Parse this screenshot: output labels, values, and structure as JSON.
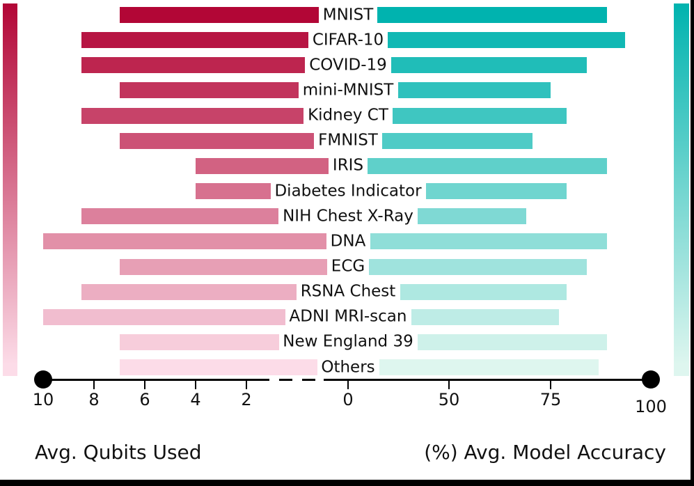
{
  "figure": {
    "left_axis_title": "Avg. Qubits Used",
    "right_axis_title": "(%) Avg. Model Accuracy"
  },
  "chart_data": {
    "type": "bar",
    "subtype": "diverging-horizontal-butterfly",
    "title": "",
    "legend": "none",
    "grid": false,
    "categories": [
      "MNIST",
      "CIFAR-10",
      "COVID-19",
      "mini-MNIST",
      "Kidney CT",
      "FMNIST",
      "IRIS",
      "Diabetes Indicator",
      "NIH Chest X-Ray",
      "DNA",
      "ECG",
      "RSNA Chest",
      "ADNI MRI-scan",
      "New England 39",
      "Others"
    ],
    "series": [
      {
        "name": "Avg. Qubits Used",
        "side": "left",
        "values": [
          7,
          8.5,
          8.5,
          7,
          8.5,
          7,
          4,
          4,
          8.5,
          10,
          7,
          8.5,
          10,
          7,
          7
        ],
        "axis_ticks": [
          "10",
          "8",
          "6",
          "4",
          "2"
        ],
        "tick_values": [
          10,
          8,
          6,
          4,
          2
        ],
        "range": [
          0,
          10
        ],
        "direction": "reversed-toward-center"
      },
      {
        "name": "(%) Avg. Model Accuracy",
        "side": "right",
        "values": [
          89,
          93.5,
          84,
          75,
          79,
          70.5,
          89,
          79,
          69,
          89,
          84,
          79,
          77,
          89,
          87
        ],
        "axis_ticks": [
          "0",
          "50",
          "75",
          "100"
        ],
        "tick_values": [
          0,
          50,
          75,
          100
        ],
        "range": [
          0,
          100
        ],
        "scale_note": "nonlinear axis: intervals 0-50, 50-75, 75-100 are equally spaced"
      }
    ],
    "axis_style": {
      "endpoints": "filled black circles at 10 (left) and 100 (right)",
      "center_break": "dashed line segment between left 2-tick and right 0-tick"
    },
    "colors": {
      "left_bar_dark": "#b20636",
      "left_bar_pale": "#fcdce8",
      "right_bar_dark": "#00b3af",
      "right_bar_pale": "#def6ef",
      "axis": "#000000",
      "text": "#111111"
    }
  }
}
